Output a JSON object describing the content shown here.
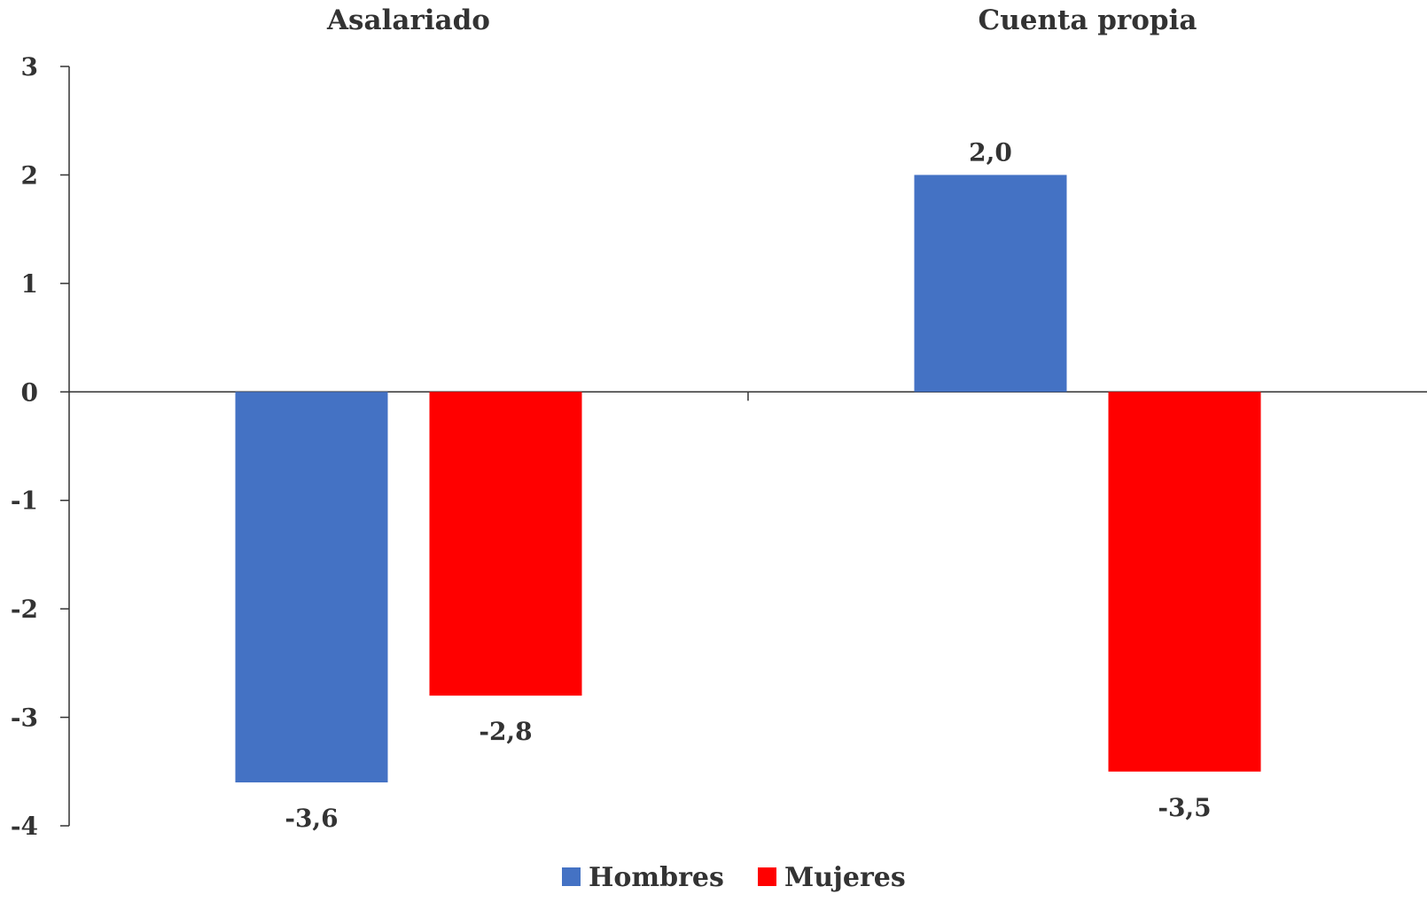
{
  "chart_data": {
    "type": "bar",
    "categories": [
      "Asalariado",
      "Cuenta propia"
    ],
    "series": [
      {
        "name": "Hombres",
        "values": [
          -3.6,
          2.0
        ],
        "labels": [
          "-3,6",
          "2,0"
        ],
        "color": "#4472C4"
      },
      {
        "name": "Mujeres",
        "values": [
          -2.8,
          -3.5
        ],
        "labels": [
          "-2,8",
          "-3,5"
        ],
        "color": "#FF0000"
      }
    ],
    "title": "",
    "xlabel": "",
    "ylabel": "",
    "ylim": [
      -4,
      3
    ],
    "yticks": [
      3,
      2,
      1,
      0,
      -1,
      -2,
      -3,
      -4
    ],
    "ytick_labels": [
      "3",
      "2",
      "1",
      "0",
      "-1",
      "-2",
      "-3",
      "-4"
    ],
    "category_labels_position": "top",
    "grid": false,
    "legend": "bottom-center"
  }
}
